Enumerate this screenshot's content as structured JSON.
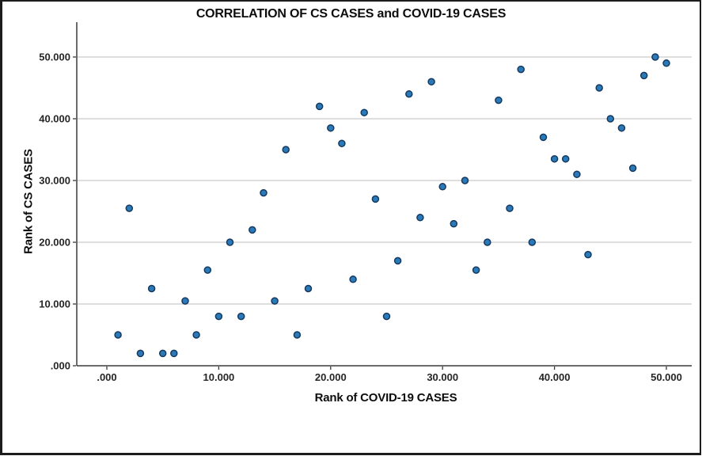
{
  "window": {
    "background": "#ffffff",
    "border_color": "#1c1c1c"
  },
  "chart_data": {
    "type": "scatter",
    "title": "CORRELATION OF CS CASES and COVID-19 CASES",
    "xlabel": "Rank of COVID-19 CASES",
    "ylabel": "Rank of CS CASES",
    "xlim": [
      0,
      50
    ],
    "ylim": [
      0,
      50
    ],
    "x_ticks": [
      0,
      10,
      20,
      30,
      40,
      50
    ],
    "x_tick_labels": [
      ".000",
      "10.000",
      "20.000",
      "30.000",
      "40.000",
      "50.000"
    ],
    "y_ticks": [
      0,
      10,
      20,
      30,
      40,
      50
    ],
    "y_tick_labels": [
      ".000",
      "10.000",
      "20.000",
      "30.000",
      "40.000",
      "50.000"
    ],
    "grid": "horizontal-only",
    "legend": "none",
    "colors": {
      "marker_fill": "#2a7ab9",
      "marker_stroke": "#15395f",
      "gridline": "#c9c9c9",
      "axis_line": "#3a3a3a",
      "tick_label": "#262626",
      "title_text": "#0d0d0d"
    },
    "points": [
      [
        1,
        5
      ],
      [
        2,
        25.5
      ],
      [
        3,
        2
      ],
      [
        4,
        12.5
      ],
      [
        5,
        2
      ],
      [
        6,
        2
      ],
      [
        7,
        10.5
      ],
      [
        8,
        5
      ],
      [
        9,
        15.5
      ],
      [
        10,
        8
      ],
      [
        11,
        20
      ],
      [
        12,
        8
      ],
      [
        13,
        22
      ],
      [
        14,
        28
      ],
      [
        15,
        10.5
      ],
      [
        16,
        35
      ],
      [
        17,
        5
      ],
      [
        18,
        12.5
      ],
      [
        19,
        42
      ],
      [
        20,
        38.5
      ],
      [
        21,
        36
      ],
      [
        22,
        14
      ],
      [
        23,
        41
      ],
      [
        24,
        27
      ],
      [
        25,
        8
      ],
      [
        26,
        17
      ],
      [
        27,
        44
      ],
      [
        28,
        24
      ],
      [
        29,
        46
      ],
      [
        30,
        29
      ],
      [
        31,
        23
      ],
      [
        32,
        30
      ],
      [
        33,
        15.5
      ],
      [
        34,
        20
      ],
      [
        35,
        43
      ],
      [
        36,
        25.5
      ],
      [
        37,
        48
      ],
      [
        38,
        20
      ],
      [
        39,
        37
      ],
      [
        40,
        33.5
      ],
      [
        41,
        33.5
      ],
      [
        42,
        31
      ],
      [
        43,
        18
      ],
      [
        44,
        45
      ],
      [
        45,
        40
      ],
      [
        46,
        38.5
      ],
      [
        47,
        32
      ],
      [
        48,
        47
      ],
      [
        49,
        50
      ],
      [
        50,
        49
      ]
    ]
  }
}
